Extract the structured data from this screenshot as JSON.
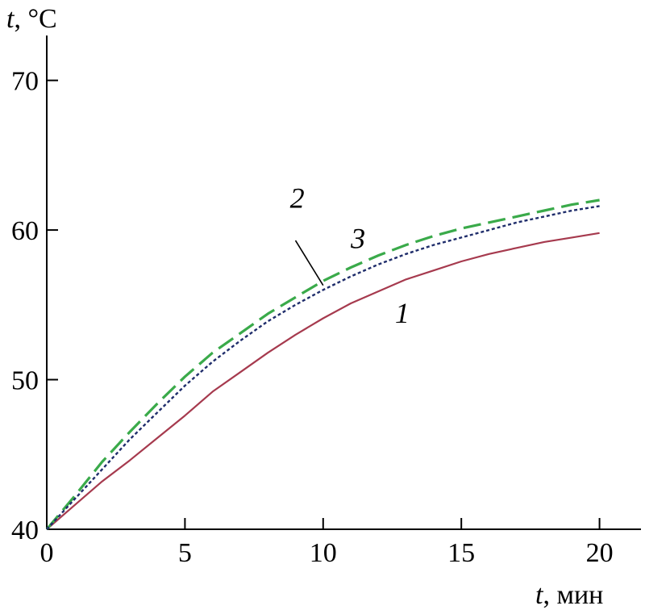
{
  "chart_data": {
    "type": "line",
    "title": "",
    "xlabel_var": "t",
    "xlabel_unit": ", мин",
    "ylabel_var": "t",
    "ylabel_unit": ", °C",
    "xlim": [
      0,
      21.5
    ],
    "ylim": [
      40,
      73
    ],
    "xticks": [
      0,
      5,
      10,
      15,
      20
    ],
    "yticks": [
      40,
      50,
      60,
      70
    ],
    "grid": false,
    "series": [
      {
        "name": "1",
        "color": "#a63a4e",
        "dash": "solid",
        "x": [
          0,
          1,
          2,
          3,
          4,
          5,
          6,
          7,
          8,
          9,
          10,
          11,
          12,
          13,
          14,
          15,
          16,
          17,
          18,
          19,
          20
        ],
        "y": [
          40,
          41.6,
          43.2,
          44.6,
          46.1,
          47.6,
          49.2,
          50.5,
          51.8,
          53.0,
          54.1,
          55.1,
          55.9,
          56.7,
          57.3,
          57.9,
          58.4,
          58.8,
          59.2,
          59.5,
          59.8
        ]
      },
      {
        "name": "2",
        "color": "#3aaa4a",
        "dash": "long-dash",
        "x": [
          0,
          1,
          2,
          3,
          4,
          5,
          6,
          7,
          8,
          9,
          10,
          11,
          12,
          13,
          14,
          15,
          16,
          17,
          18,
          19,
          20
        ],
        "y": [
          40,
          42.2,
          44.5,
          46.5,
          48.4,
          50.2,
          51.8,
          53.1,
          54.4,
          55.5,
          56.6,
          57.5,
          58.3,
          59.0,
          59.6,
          60.1,
          60.5,
          60.9,
          61.3,
          61.7,
          62.0
        ]
      },
      {
        "name": "3",
        "color": "#1f2d6b",
        "dash": "dotted",
        "x": [
          0,
          1,
          2,
          3,
          4,
          5,
          6,
          7,
          8,
          9,
          10,
          11,
          12,
          13,
          14,
          15,
          16,
          17,
          18,
          19,
          20
        ],
        "y": [
          40,
          42.0,
          44.0,
          46.0,
          47.8,
          49.6,
          51.2,
          52.6,
          53.9,
          55.0,
          56.0,
          56.9,
          57.7,
          58.4,
          59.0,
          59.5,
          60.0,
          60.5,
          60.9,
          61.3,
          61.6
        ]
      }
    ]
  }
}
